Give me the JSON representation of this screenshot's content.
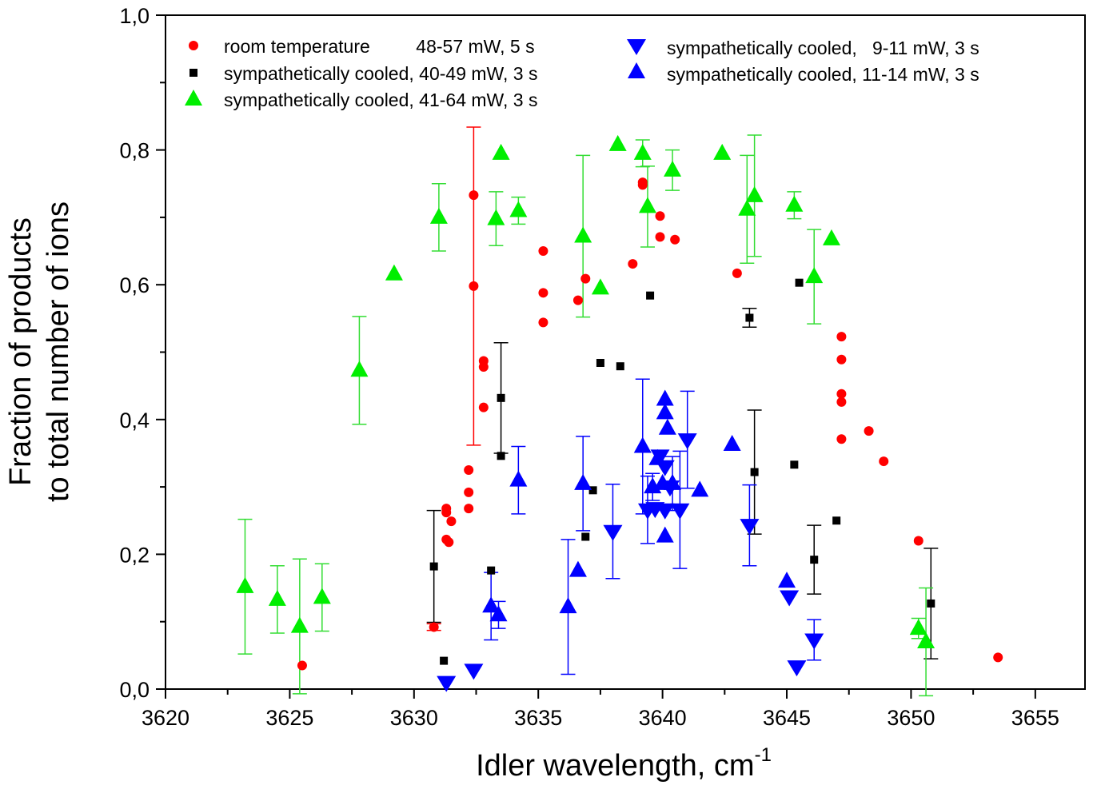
{
  "chart_data": {
    "type": "scatter",
    "title": "",
    "xlabel": "Idler wavelength, cm",
    "xlabel_sup": "-1",
    "ylabel_line1": "Fraction of products",
    "ylabel_line2": "to total number of ions",
    "xlim": [
      3620,
      3657
    ],
    "ylim": [
      0,
      1.0
    ],
    "x_ticks": [
      3620,
      3625,
      3630,
      3635,
      3640,
      3645,
      3650,
      3655
    ],
    "x_tick_labels": [
      "3620",
      "3625",
      "3630",
      "3635",
      "3640",
      "3645",
      "3650",
      "3655"
    ],
    "y_ticks": [
      0,
      0.2,
      0.4,
      0.6,
      0.8,
      1.0
    ],
    "y_tick_labels": [
      "0,0",
      "0,2",
      "0,4",
      "0,6",
      "0,8",
      "1,0"
    ],
    "grid": false,
    "legend_position": "top",
    "series": [
      {
        "name": "room temperature         48-57 mW, 5 s",
        "marker": "circle",
        "color": "#ff0000",
        "points": [
          {
            "x": 3625.5,
            "y": 0.035
          },
          {
            "x": 3630.8,
            "y": 0.092,
            "err": 0.005
          },
          {
            "x": 3631.3,
            "y": 0.268
          },
          {
            "x": 3631.3,
            "y": 0.262
          },
          {
            "x": 3631.3,
            "y": 0.222
          },
          {
            "x": 3631.4,
            "y": 0.218
          },
          {
            "x": 3631.5,
            "y": 0.249
          },
          {
            "x": 3632.2,
            "y": 0.325
          },
          {
            "x": 3632.2,
            "y": 0.292
          },
          {
            "x": 3632.2,
            "y": 0.268
          },
          {
            "x": 3632.4,
            "y": 0.733
          },
          {
            "x": 3632.4,
            "y": 0.598,
            "err": 0.236
          },
          {
            "x": 3632.8,
            "y": 0.487
          },
          {
            "x": 3632.8,
            "y": 0.478
          },
          {
            "x": 3632.8,
            "y": 0.418
          },
          {
            "x": 3635.2,
            "y": 0.65
          },
          {
            "x": 3635.2,
            "y": 0.588
          },
          {
            "x": 3635.2,
            "y": 0.544
          },
          {
            "x": 3636.6,
            "y": 0.577
          },
          {
            "x": 3636.9,
            "y": 0.609
          },
          {
            "x": 3638.8,
            "y": 0.631
          },
          {
            "x": 3639.2,
            "y": 0.752
          },
          {
            "x": 3639.2,
            "y": 0.748
          },
          {
            "x": 3639.9,
            "y": 0.702
          },
          {
            "x": 3639.9,
            "y": 0.671
          },
          {
            "x": 3640.5,
            "y": 0.667
          },
          {
            "x": 3643.0,
            "y": 0.617
          },
          {
            "x": 3647.2,
            "y": 0.523
          },
          {
            "x": 3647.2,
            "y": 0.489
          },
          {
            "x": 3647.2,
            "y": 0.438
          },
          {
            "x": 3647.2,
            "y": 0.426
          },
          {
            "x": 3647.2,
            "y": 0.371
          },
          {
            "x": 3648.3,
            "y": 0.383
          },
          {
            "x": 3648.9,
            "y": 0.338
          },
          {
            "x": 3650.3,
            "y": 0.22
          },
          {
            "x": 3653.5,
            "y": 0.047
          }
        ]
      },
      {
        "name": "sympathetically cooled, 40-49 mW, 3 s",
        "marker": "square",
        "color": "#000000",
        "points": [
          {
            "x": 3630.8,
            "y": 0.182,
            "err_up": 0.083,
            "err_down": 0.083
          },
          {
            "x": 3631.2,
            "y": 0.042
          },
          {
            "x": 3633.1,
            "y": 0.176
          },
          {
            "x": 3633.5,
            "y": 0.432,
            "err_up": 0.082,
            "err_down": 0.082
          },
          {
            "x": 3633.5,
            "y": 0.346
          },
          {
            "x": 3636.9,
            "y": 0.226
          },
          {
            "x": 3637.2,
            "y": 0.295
          },
          {
            "x": 3637.5,
            "y": 0.484
          },
          {
            "x": 3638.3,
            "y": 0.479
          },
          {
            "x": 3639.5,
            "y": 0.584
          },
          {
            "x": 3643.5,
            "y": 0.551,
            "err_up": 0.014,
            "err_down": 0.014
          },
          {
            "x": 3643.7,
            "y": 0.322,
            "err_up": 0.092,
            "err_down": 0.092
          },
          {
            "x": 3645.3,
            "y": 0.333
          },
          {
            "x": 3645.5,
            "y": 0.603
          },
          {
            "x": 3646.1,
            "y": 0.192,
            "err_up": 0.051,
            "err_down": 0.051
          },
          {
            "x": 3647.0,
            "y": 0.25
          },
          {
            "x": 3650.8,
            "y": 0.127,
            "err_up": 0.082,
            "err_down": 0.082
          }
        ]
      },
      {
        "name": "sympathetically cooled, 41-64 mW, 3 s",
        "marker": "triangle-up",
        "color": "#00ee00",
        "points": [
          {
            "x": 3623.2,
            "y": 0.152,
            "err_up": 0.1,
            "err_down": 0.1
          },
          {
            "x": 3624.5,
            "y": 0.133,
            "err_up": 0.05,
            "err_down": 0.05
          },
          {
            "x": 3625.4,
            "y": 0.093,
            "err_up": 0.1,
            "err_down": 0.1
          },
          {
            "x": 3626.3,
            "y": 0.136,
            "err_up": 0.05,
            "err_down": 0.05
          },
          {
            "x": 3627.8,
            "y": 0.473,
            "err_up": 0.08,
            "err_down": 0.08
          },
          {
            "x": 3629.2,
            "y": 0.616
          },
          {
            "x": 3631.0,
            "y": 0.7,
            "err_up": 0.05,
            "err_down": 0.05
          },
          {
            "x": 3633.3,
            "y": 0.698,
            "err_up": 0.04,
            "err_down": 0.04
          },
          {
            "x": 3633.5,
            "y": 0.795
          },
          {
            "x": 3634.2,
            "y": 0.71,
            "err_up": 0.02,
            "err_down": 0.02
          },
          {
            "x": 3636.8,
            "y": 0.672,
            "err_up": 0.12,
            "err_down": 0.12
          },
          {
            "x": 3637.5,
            "y": 0.595
          },
          {
            "x": 3638.2,
            "y": 0.808
          },
          {
            "x": 3639.2,
            "y": 0.795,
            "err_up": 0.02,
            "err_down": 0.02
          },
          {
            "x": 3639.4,
            "y": 0.716,
            "err_up": 0.06,
            "err_down": 0.06
          },
          {
            "x": 3640.4,
            "y": 0.77,
            "err_up": 0.03,
            "err_down": 0.03
          },
          {
            "x": 3642.4,
            "y": 0.795
          },
          {
            "x": 3643.4,
            "y": 0.712,
            "err_up": 0.08,
            "err_down": 0.08
          },
          {
            "x": 3643.7,
            "y": 0.732,
            "err_up": 0.09,
            "err_down": 0.09
          },
          {
            "x": 3645.3,
            "y": 0.718,
            "err_up": 0.02,
            "err_down": 0.02
          },
          {
            "x": 3646.1,
            "y": 0.612,
            "err_up": 0.07,
            "err_down": 0.07
          },
          {
            "x": 3646.8,
            "y": 0.668
          },
          {
            "x": 3650.3,
            "y": 0.09,
            "err_up": 0.015,
            "err_down": 0.015
          },
          {
            "x": 3650.6,
            "y": 0.07,
            "err_up": 0.08,
            "err_down": 0.08
          }
        ]
      },
      {
        "name": "sympathetically cooled,   9-11 mW, 3 s",
        "marker": "triangle-down",
        "color": "#0000ff",
        "points": [
          {
            "x": 3631.3,
            "y": 0.01
          },
          {
            "x": 3632.4,
            "y": 0.028
          },
          {
            "x": 3638.0,
            "y": 0.234,
            "err_up": 0.07,
            "err_down": 0.07
          },
          {
            "x": 3639.4,
            "y": 0.266,
            "err_up": 0.05,
            "err_down": 0.05
          },
          {
            "x": 3639.7,
            "y": 0.268
          },
          {
            "x": 3639.9,
            "y": 0.346
          },
          {
            "x": 3640.1,
            "y": 0.266
          },
          {
            "x": 3640.1,
            "y": 0.33
          },
          {
            "x": 3640.3,
            "y": 0.3
          },
          {
            "x": 3640.7,
            "y": 0.266,
            "err_up": 0.087,
            "err_down": 0.087
          },
          {
            "x": 3641.0,
            "y": 0.37,
            "err_up": 0.072,
            "err_down": 0.072
          },
          {
            "x": 3643.5,
            "y": 0.243,
            "err_up": 0.06,
            "err_down": 0.06
          },
          {
            "x": 3645.1,
            "y": 0.137
          },
          {
            "x": 3645.4,
            "y": 0.033
          },
          {
            "x": 3646.1,
            "y": 0.073,
            "err_up": 0.03,
            "err_down": 0.03
          }
        ]
      },
      {
        "name": "sympathetically cooled, 11-14 mW, 3 s",
        "marker": "triangle-up",
        "color": "#0000ff",
        "points": [
          {
            "x": 3633.1,
            "y": 0.123,
            "err_up": 0.05,
            "err_down": 0.05
          },
          {
            "x": 3633.4,
            "y": 0.11,
            "err_up": 0.02,
            "err_down": 0.02
          },
          {
            "x": 3634.2,
            "y": 0.31,
            "err_up": 0.05,
            "err_down": 0.05
          },
          {
            "x": 3636.2,
            "y": 0.122,
            "err_up": 0.1,
            "err_down": 0.1
          },
          {
            "x": 3636.6,
            "y": 0.176
          },
          {
            "x": 3636.8,
            "y": 0.305,
            "err_up": 0.07,
            "err_down": 0.07
          },
          {
            "x": 3639.2,
            "y": 0.36,
            "err_up": 0.1,
            "err_down": 0.1
          },
          {
            "x": 3639.6,
            "y": 0.3,
            "err_up": 0.02,
            "err_down": 0.02
          },
          {
            "x": 3639.8,
            "y": 0.342
          },
          {
            "x": 3640.0,
            "y": 0.305
          },
          {
            "x": 3640.1,
            "y": 0.43
          },
          {
            "x": 3640.1,
            "y": 0.41
          },
          {
            "x": 3640.2,
            "y": 0.387
          },
          {
            "x": 3640.1,
            "y": 0.227
          },
          {
            "x": 3640.4,
            "y": 0.305,
            "err_up": 0.04,
            "err_down": 0.04
          },
          {
            "x": 3641.5,
            "y": 0.295
          },
          {
            "x": 3642.8,
            "y": 0.363
          },
          {
            "x": 3645.0,
            "y": 0.16
          }
        ]
      }
    ]
  }
}
